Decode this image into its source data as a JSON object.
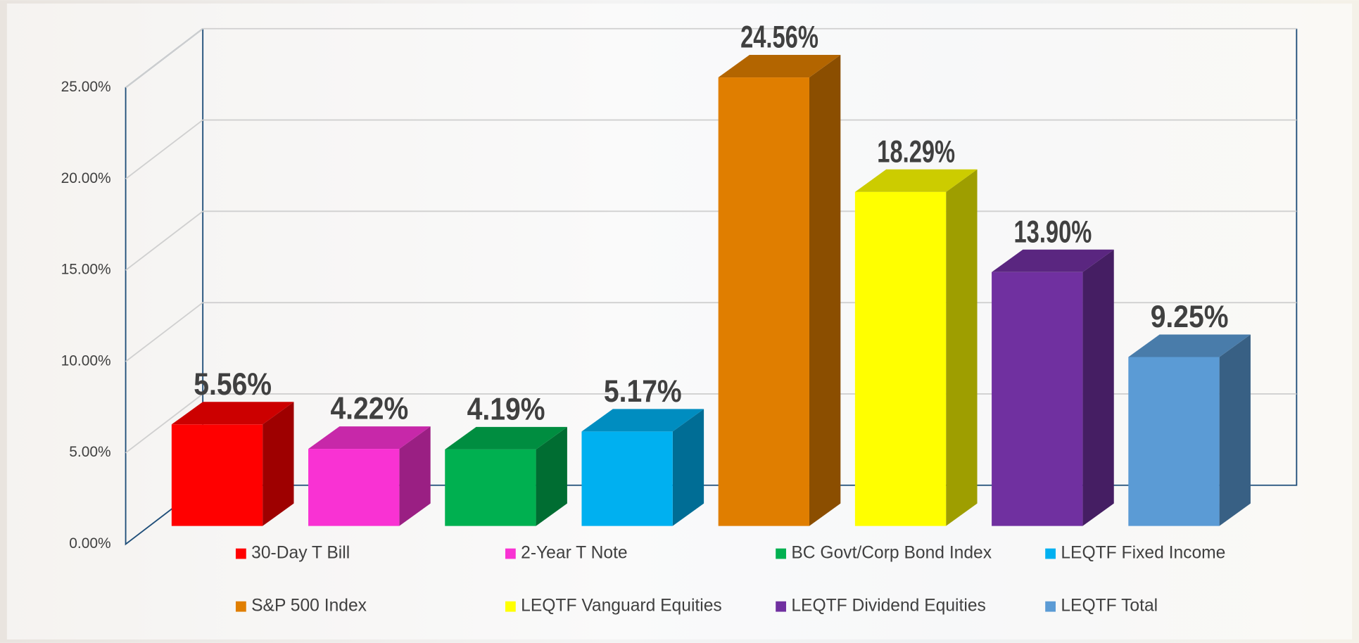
{
  "chart_data": {
    "type": "bar3d",
    "categories": [
      "30-Day T Bill",
      "2-Year T Note",
      "BC Govt/Corp Bond Index",
      "LEQTF Fixed Income",
      "S&P 500 Index",
      "LEQTF Vanguard Equities",
      "LEQTF Dividend Equities",
      "LEQTF Total"
    ],
    "values": [
      5.56,
      4.22,
      4.19,
      5.17,
      24.56,
      18.29,
      13.9,
      9.25
    ],
    "value_labels": [
      "5.56%",
      "4.22%",
      "4.19%",
      "5.17%",
      "24.56%",
      "18.29%",
      "13.90%",
      "9.25%"
    ],
    "colors": [
      "#ff0000",
      "#f932d3",
      "#00b050",
      "#00b0f0",
      "#e07e00",
      "#ffff00",
      "#7030a0",
      "#5b9bd5"
    ],
    "ylim": [
      0,
      25
    ],
    "yticks": [
      {
        "value": 0,
        "label": "0.00%"
      },
      {
        "value": 5,
        "label": "5.00%"
      },
      {
        "value": 10,
        "label": "10.00%"
      },
      {
        "value": 15,
        "label": "15.00%"
      },
      {
        "value": 20,
        "label": "20.00%"
      },
      {
        "value": 25,
        "label": "25.00%"
      }
    ],
    "grid": true,
    "legend": "bottom"
  }
}
